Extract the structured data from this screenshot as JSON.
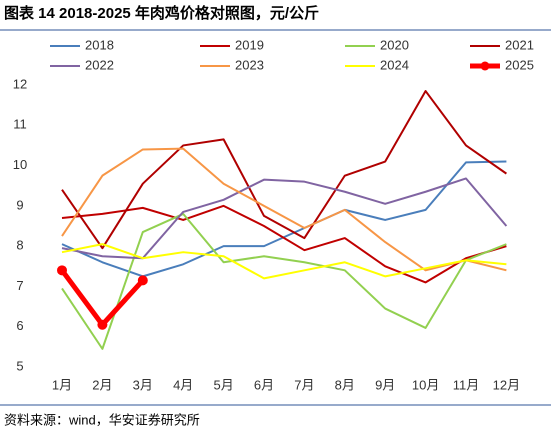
{
  "chart_data": {
    "type": "line",
    "title": "图表 14 2018-2025 年肉鸡价格对照图，元/公斤",
    "source": "资料来源：wind，华安证券研究所",
    "categories": [
      "1月",
      "2月",
      "3月",
      "4月",
      "5月",
      "6月",
      "7月",
      "8月",
      "9月",
      "10月",
      "11月",
      "12月"
    ],
    "ylim": [
      5,
      12
    ],
    "yticks": [
      5,
      6,
      7,
      8,
      9,
      10,
      11,
      12
    ],
    "series": [
      {
        "name": "2018",
        "color": "#4a7ebb",
        "values": [
          8.05,
          7.6,
          7.25,
          7.55,
          8.0,
          8.0,
          8.45,
          8.9,
          8.65,
          8.9,
          10.08,
          10.1
        ]
      },
      {
        "name": "2019",
        "color": "#c00000",
        "values": [
          8.7,
          8.8,
          8.95,
          8.65,
          9.0,
          8.5,
          7.9,
          8.2,
          7.5,
          7.1,
          7.7,
          8.0
        ]
      },
      {
        "name": "2020",
        "color": "#92d050",
        "values": [
          6.95,
          5.45,
          8.35,
          8.8,
          7.6,
          7.75,
          7.6,
          7.4,
          6.45,
          5.97,
          7.65,
          8.05
        ]
      },
      {
        "name": "2021",
        "color": "#b00000",
        "values": [
          9.4,
          7.95,
          9.55,
          10.5,
          10.65,
          8.75,
          8.2,
          9.75,
          10.1,
          11.85,
          10.5,
          9.8
        ]
      },
      {
        "name": "2022",
        "color": "#8064a2",
        "values": [
          7.95,
          7.75,
          7.7,
          8.85,
          9.15,
          9.65,
          9.6,
          9.35,
          9.05,
          9.35,
          9.68,
          8.5
        ]
      },
      {
        "name": "2023",
        "color": "#f79646",
        "values": [
          8.25,
          9.75,
          10.4,
          10.42,
          9.55,
          9.0,
          8.45,
          8.9,
          8.1,
          7.4,
          7.65,
          7.4
        ]
      },
      {
        "name": "2024",
        "color": "#ffff00",
        "values": [
          7.85,
          8.05,
          7.7,
          7.85,
          7.75,
          7.2,
          7.4,
          7.6,
          7.25,
          7.45,
          7.65,
          7.55
        ]
      },
      {
        "name": "2025",
        "color": "#ff0000",
        "width": 5,
        "markers": true,
        "values": [
          7.4,
          6.05,
          7.15,
          null,
          null,
          null,
          null,
          null,
          null,
          null,
          null,
          null
        ]
      }
    ]
  }
}
